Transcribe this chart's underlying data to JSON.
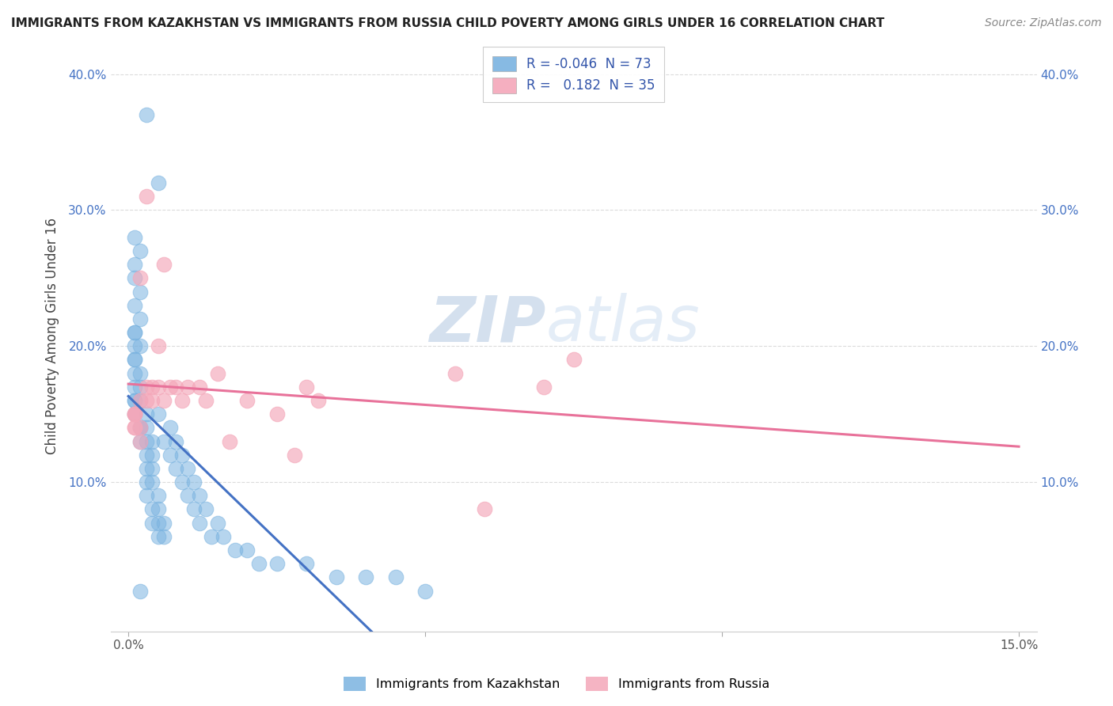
{
  "title": "IMMIGRANTS FROM KAZAKHSTAN VS IMMIGRANTS FROM RUSSIA CHILD POVERTY AMONG GIRLS UNDER 16 CORRELATION CHART",
  "source": "Source: ZipAtlas.com",
  "ylabel": "Child Poverty Among Girls Under 16",
  "xlim": [
    0.0,
    0.15
  ],
  "ylim": [
    0.0,
    0.42
  ],
  "xtick_positions": [
    0.0,
    0.05,
    0.1,
    0.15
  ],
  "xtick_labels": [
    "0.0%",
    "",
    "",
    "15.0%"
  ],
  "ytick_positions": [
    0.1,
    0.2,
    0.3,
    0.4
  ],
  "ytick_labels": [
    "10.0%",
    "20.0%",
    "30.0%",
    "40.0%"
  ],
  "kazakhstan_color": "#7ab3e0",
  "russia_color": "#f4a7b9",
  "kaz_line_color": "#4472c4",
  "rus_line_color": "#e8729a",
  "kazakhstan_R": -0.046,
  "kazakhstan_N": 73,
  "russia_R": 0.182,
  "russia_N": 35,
  "legend_label_1": "Immigrants from Kazakhstan",
  "legend_label_2": "Immigrants from Russia",
  "watermark_zip": "ZIP",
  "watermark_atlas": "atlas",
  "background_color": "#ffffff",
  "grid_color": "#cccccc",
  "kaz_points_x": [
    0.003,
    0.005,
    0.001,
    0.002,
    0.001,
    0.001,
    0.002,
    0.001,
    0.002,
    0.001,
    0.001,
    0.001,
    0.002,
    0.001,
    0.001,
    0.002,
    0.001,
    0.001,
    0.002,
    0.001,
    0.001,
    0.002,
    0.001,
    0.003,
    0.002,
    0.002,
    0.003,
    0.002,
    0.003,
    0.004,
    0.003,
    0.004,
    0.003,
    0.004,
    0.003,
    0.004,
    0.003,
    0.005,
    0.004,
    0.005,
    0.004,
    0.005,
    0.006,
    0.005,
    0.006,
    0.005,
    0.007,
    0.006,
    0.008,
    0.007,
    0.009,
    0.008,
    0.01,
    0.009,
    0.011,
    0.01,
    0.012,
    0.011,
    0.013,
    0.012,
    0.015,
    0.014,
    0.016,
    0.018,
    0.02,
    0.022,
    0.025,
    0.03,
    0.035,
    0.04,
    0.045,
    0.05,
    0.002
  ],
  "kaz_points_y": [
    0.37,
    0.32,
    0.28,
    0.27,
    0.25,
    0.26,
    0.24,
    0.23,
    0.22,
    0.21,
    0.21,
    0.2,
    0.2,
    0.19,
    0.19,
    0.18,
    0.18,
    0.17,
    0.17,
    0.16,
    0.16,
    0.16,
    0.15,
    0.15,
    0.14,
    0.14,
    0.14,
    0.13,
    0.13,
    0.13,
    0.12,
    0.12,
    0.11,
    0.11,
    0.1,
    0.1,
    0.09,
    0.09,
    0.08,
    0.08,
    0.07,
    0.07,
    0.07,
    0.06,
    0.06,
    0.15,
    0.14,
    0.13,
    0.13,
    0.12,
    0.12,
    0.11,
    0.11,
    0.1,
    0.1,
    0.09,
    0.09,
    0.08,
    0.08,
    0.07,
    0.07,
    0.06,
    0.06,
    0.05,
    0.05,
    0.04,
    0.04,
    0.04,
    0.03,
    0.03,
    0.03,
    0.02,
    0.02
  ],
  "rus_points_x": [
    0.001,
    0.001,
    0.001,
    0.001,
    0.002,
    0.001,
    0.002,
    0.002,
    0.003,
    0.002,
    0.003,
    0.003,
    0.004,
    0.004,
    0.005,
    0.005,
    0.006,
    0.006,
    0.007,
    0.008,
    0.009,
    0.01,
    0.012,
    0.013,
    0.015,
    0.017,
    0.02,
    0.025,
    0.028,
    0.03,
    0.032,
    0.055,
    0.06,
    0.07,
    0.075
  ],
  "rus_points_y": [
    0.15,
    0.15,
    0.14,
    0.14,
    0.13,
    0.15,
    0.14,
    0.16,
    0.31,
    0.25,
    0.17,
    0.16,
    0.17,
    0.16,
    0.2,
    0.17,
    0.16,
    0.26,
    0.17,
    0.17,
    0.16,
    0.17,
    0.17,
    0.16,
    0.18,
    0.13,
    0.16,
    0.15,
    0.12,
    0.17,
    0.16,
    0.18,
    0.08,
    0.17,
    0.19
  ]
}
